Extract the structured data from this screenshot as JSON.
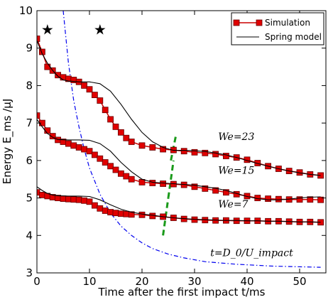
{
  "chart_data": {
    "type": "line",
    "xlabel": "Time after the first impact t/ms",
    "ylabel": "Energy E_ms /μJ",
    "xlim": [
      0,
      55
    ],
    "ylim": [
      3,
      10
    ],
    "xticks": [
      0,
      10,
      20,
      30,
      40,
      50
    ],
    "yticks": [
      3,
      4,
      5,
      6,
      7,
      8,
      9,
      10
    ],
    "grid": false,
    "legend_position": "top-right",
    "legend": [
      {
        "label": "Simulation",
        "style": "red-square-markers"
      },
      {
        "label": "Spring model",
        "style": "black-line"
      }
    ],
    "annotations": [
      {
        "text": "We=23",
        "x": 34.5,
        "y": 6.55
      },
      {
        "text": "We=15",
        "x": 34.5,
        "y": 5.65
      },
      {
        "text": "We=7",
        "x": 34.5,
        "y": 4.75
      },
      {
        "text": "t=D_0/U_impact",
        "x": 33,
        "y": 3.45
      }
    ],
    "stars": [
      {
        "x": 2,
        "y": 9.5
      },
      {
        "x": 12,
        "y": 9.5
      }
    ],
    "impact_time_curve": {
      "style": "blue-dash-dot",
      "points": [
        [
          5,
          10.0
        ],
        [
          5.5,
          9.3
        ],
        [
          6,
          8.6
        ],
        [
          7,
          7.6
        ],
        [
          8,
          6.9
        ],
        [
          9,
          6.3
        ],
        [
          10,
          5.8
        ],
        [
          12,
          5.1
        ],
        [
          14,
          4.6
        ],
        [
          16,
          4.25
        ],
        [
          18,
          4.0
        ],
        [
          20,
          3.8
        ],
        [
          22,
          3.65
        ],
        [
          25,
          3.5
        ],
        [
          28,
          3.4
        ],
        [
          32,
          3.3
        ],
        [
          38,
          3.23
        ],
        [
          45,
          3.18
        ],
        [
          54,
          3.15
        ]
      ]
    },
    "impact_markers": {
      "style": "green-dashed",
      "segments": [
        {
          "x": [
            24,
            25
          ],
          "y": [
            4.0,
            5.0
          ]
        },
        {
          "x": [
            25,
            26
          ],
          "y": [
            5.0,
            6.0
          ]
        },
        {
          "x": [
            25.5,
            26.5
          ],
          "y": [
            6.0,
            6.7
          ]
        }
      ]
    },
    "series": [
      {
        "name": "Simulation",
        "group": "We=23",
        "style": "red-square-markers",
        "points": [
          [
            0,
            9.25
          ],
          [
            1,
            8.9
          ],
          [
            2,
            8.5
          ],
          [
            3,
            8.4
          ],
          [
            4,
            8.28
          ],
          [
            5,
            8.22
          ],
          [
            6,
            8.18
          ],
          [
            7,
            8.15
          ],
          [
            8,
            8.1
          ],
          [
            9,
            8.0
          ],
          [
            10,
            7.9
          ],
          [
            11,
            7.75
          ],
          [
            12,
            7.6
          ],
          [
            13,
            7.35
          ],
          [
            14,
            7.1
          ],
          [
            15,
            6.9
          ],
          [
            16,
            6.75
          ],
          [
            17,
            6.6
          ],
          [
            18,
            6.5
          ],
          [
            20,
            6.4
          ],
          [
            22,
            6.35
          ],
          [
            24,
            6.3
          ],
          [
            26,
            6.28
          ],
          [
            28,
            6.25
          ],
          [
            30,
            6.22
          ],
          [
            32,
            6.2
          ],
          [
            34,
            6.17
          ],
          [
            36,
            6.12
          ],
          [
            38,
            6.08
          ],
          [
            40,
            6.02
          ],
          [
            42,
            5.93
          ],
          [
            44,
            5.85
          ],
          [
            46,
            5.78
          ],
          [
            48,
            5.72
          ],
          [
            50,
            5.68
          ],
          [
            52,
            5.63
          ],
          [
            54,
            5.6
          ]
        ]
      },
      {
        "name": "Spring model",
        "group": "We=23",
        "style": "black-line",
        "points": [
          [
            0,
            9.2
          ],
          [
            1,
            8.85
          ],
          [
            2,
            8.6
          ],
          [
            3,
            8.4
          ],
          [
            4,
            8.25
          ],
          [
            5,
            8.15
          ],
          [
            6,
            8.12
          ],
          [
            8,
            8.1
          ],
          [
            10,
            8.1
          ],
          [
            12,
            8.05
          ],
          [
            14,
            7.85
          ],
          [
            16,
            7.5
          ],
          [
            18,
            7.1
          ],
          [
            20,
            6.75
          ],
          [
            22,
            6.5
          ],
          [
            24,
            6.35
          ],
          [
            26,
            6.27
          ],
          [
            28,
            6.27
          ],
          [
            30,
            6.26
          ],
          [
            32,
            6.24
          ],
          [
            34,
            6.2
          ],
          [
            36,
            6.15
          ],
          [
            38,
            6.08
          ],
          [
            40,
            6.0
          ],
          [
            42,
            5.92
          ],
          [
            44,
            5.85
          ],
          [
            46,
            5.78
          ],
          [
            48,
            5.72
          ],
          [
            50,
            5.67
          ],
          [
            52,
            5.63
          ],
          [
            54,
            5.6
          ]
        ]
      },
      {
        "name": "Simulation",
        "group": "We=15",
        "style": "red-square-markers",
        "points": [
          [
            0,
            7.2
          ],
          [
            1,
            7.0
          ],
          [
            2,
            6.8
          ],
          [
            3,
            6.65
          ],
          [
            4,
            6.55
          ],
          [
            5,
            6.5
          ],
          [
            6,
            6.45
          ],
          [
            7,
            6.4
          ],
          [
            8,
            6.35
          ],
          [
            9,
            6.3
          ],
          [
            10,
            6.25
          ],
          [
            11,
            6.15
          ],
          [
            12,
            6.05
          ],
          [
            13,
            5.95
          ],
          [
            14,
            5.85
          ],
          [
            15,
            5.75
          ],
          [
            16,
            5.65
          ],
          [
            17,
            5.58
          ],
          [
            18,
            5.5
          ],
          [
            20,
            5.42
          ],
          [
            22,
            5.4
          ],
          [
            24,
            5.38
          ],
          [
            26,
            5.37
          ],
          [
            28,
            5.35
          ],
          [
            30,
            5.3
          ],
          [
            32,
            5.25
          ],
          [
            34,
            5.2
          ],
          [
            36,
            5.15
          ],
          [
            38,
            5.1
          ],
          [
            40,
            5.05
          ],
          [
            42,
            5.0
          ],
          [
            44,
            4.98
          ],
          [
            46,
            4.97
          ],
          [
            48,
            4.96
          ],
          [
            50,
            4.96
          ],
          [
            52,
            4.96
          ],
          [
            54,
            4.95
          ]
        ]
      },
      {
        "name": "Spring model",
        "group": "We=15",
        "style": "black-line",
        "points": [
          [
            0,
            7.1
          ],
          [
            1,
            6.9
          ],
          [
            2,
            6.72
          ],
          [
            3,
            6.62
          ],
          [
            4,
            6.56
          ],
          [
            6,
            6.55
          ],
          [
            8,
            6.55
          ],
          [
            10,
            6.54
          ],
          [
            12,
            6.45
          ],
          [
            14,
            6.25
          ],
          [
            16,
            5.95
          ],
          [
            18,
            5.7
          ],
          [
            20,
            5.5
          ],
          [
            22,
            5.42
          ],
          [
            24,
            5.4
          ],
          [
            26,
            5.38
          ],
          [
            28,
            5.36
          ],
          [
            30,
            5.34
          ],
          [
            32,
            5.3
          ],
          [
            34,
            5.26
          ],
          [
            36,
            5.2
          ],
          [
            38,
            5.12
          ],
          [
            40,
            5.04
          ],
          [
            42,
            4.98
          ],
          [
            44,
            4.95
          ],
          [
            46,
            4.95
          ],
          [
            48,
            4.97
          ],
          [
            50,
            5.0
          ],
          [
            52,
            5.02
          ],
          [
            54,
            5.03
          ]
        ]
      },
      {
        "name": "Simulation",
        "group": "We=7",
        "style": "red-square-markers",
        "points": [
          [
            0,
            5.15
          ],
          [
            1,
            5.08
          ],
          [
            2,
            5.05
          ],
          [
            3,
            5.02
          ],
          [
            4,
            5.0
          ],
          [
            5,
            4.98
          ],
          [
            6,
            4.97
          ],
          [
            7,
            4.96
          ],
          [
            8,
            4.95
          ],
          [
            9,
            4.93
          ],
          [
            10,
            4.9
          ],
          [
            11,
            4.8
          ],
          [
            12,
            4.72
          ],
          [
            13,
            4.66
          ],
          [
            14,
            4.62
          ],
          [
            15,
            4.6
          ],
          [
            16,
            4.58
          ],
          [
            17,
            4.57
          ],
          [
            18,
            4.56
          ],
          [
            20,
            4.55
          ],
          [
            22,
            4.52
          ],
          [
            24,
            4.5
          ],
          [
            26,
            4.47
          ],
          [
            28,
            4.44
          ],
          [
            30,
            4.42
          ],
          [
            32,
            4.41
          ],
          [
            34,
            4.4
          ],
          [
            36,
            4.4
          ],
          [
            38,
            4.39
          ],
          [
            40,
            4.39
          ],
          [
            42,
            4.39
          ],
          [
            44,
            4.38
          ],
          [
            46,
            4.38
          ],
          [
            48,
            4.37
          ],
          [
            50,
            4.36
          ],
          [
            52,
            4.36
          ],
          [
            54,
            4.35
          ]
        ]
      },
      {
        "name": "Spring model",
        "group": "We=7",
        "style": "black-line",
        "points": [
          [
            0,
            5.3
          ],
          [
            1,
            5.2
          ],
          [
            2,
            5.12
          ],
          [
            3,
            5.08
          ],
          [
            4,
            5.06
          ],
          [
            6,
            5.05
          ],
          [
            8,
            5.05
          ],
          [
            10,
            5.04
          ],
          [
            12,
            4.95
          ],
          [
            14,
            4.82
          ],
          [
            16,
            4.7
          ],
          [
            18,
            4.62
          ],
          [
            20,
            4.57
          ],
          [
            22,
            4.54
          ],
          [
            24,
            4.5
          ],
          [
            26,
            4.47
          ],
          [
            28,
            4.45
          ],
          [
            30,
            4.43
          ],
          [
            32,
            4.42
          ],
          [
            34,
            4.41
          ],
          [
            36,
            4.4
          ],
          [
            38,
            4.4
          ],
          [
            40,
            4.39
          ],
          [
            42,
            4.39
          ],
          [
            44,
            4.38
          ],
          [
            46,
            4.38
          ],
          [
            48,
            4.37
          ],
          [
            50,
            4.36
          ],
          [
            52,
            4.36
          ],
          [
            54,
            4.35
          ]
        ]
      }
    ]
  }
}
